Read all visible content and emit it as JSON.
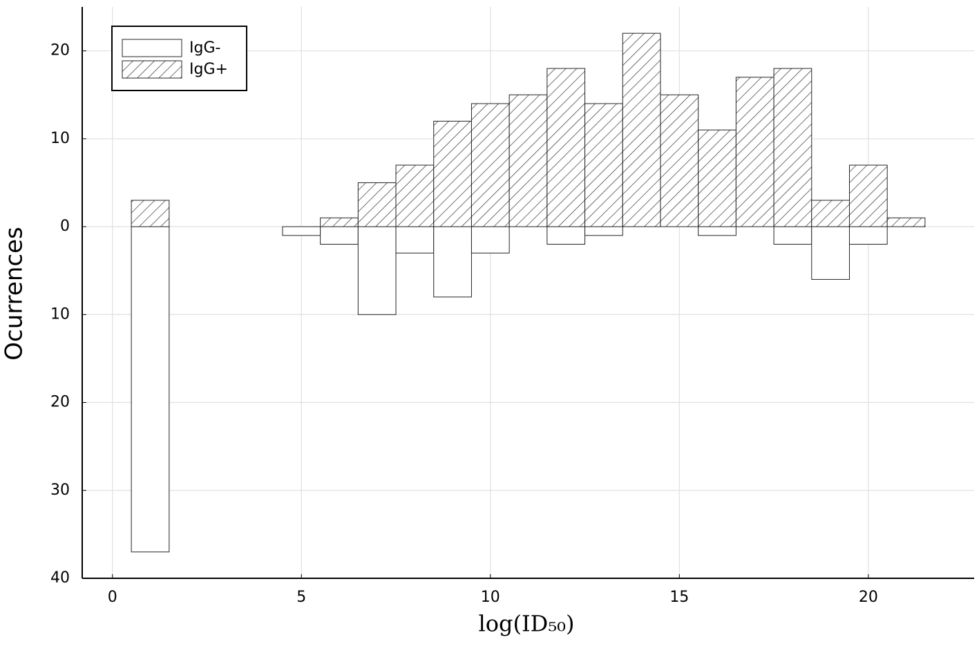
{
  "chart_data": {
    "type": "histogram",
    "xlabel": "log(ID₅₀)",
    "ylabel": "Ocurrences",
    "bins": [
      0.5,
      1.5,
      2.5,
      3.5,
      4.5,
      5.5,
      6.5,
      7.5,
      8.5,
      9.5,
      10.5,
      11.5,
      12.5,
      13.5,
      14.5,
      15.5,
      16.5,
      17.5,
      18.5,
      19.5,
      20.5,
      21.5
    ],
    "series": [
      {
        "name": "IgG-",
        "color": "#ffffff",
        "hatch": false,
        "values": [
          -37,
          0,
          0,
          0,
          -1,
          -2,
          -10,
          -3,
          -8,
          -3,
          0,
          -2,
          -1,
          0,
          0,
          -1,
          0,
          -2,
          -6,
          -2,
          0
        ]
      },
      {
        "name": "IgG+",
        "color": "#ffffff",
        "hatch": true,
        "values": [
          3,
          0,
          0,
          0,
          0,
          1,
          5,
          7,
          12,
          14,
          15,
          18,
          14,
          22,
          15,
          11,
          17,
          18,
          3,
          7,
          1
        ]
      }
    ],
    "xlim": [
      -0.8,
      22.8
    ],
    "ylim": [
      -40,
      25
    ],
    "xticks": [
      0,
      5,
      10,
      15,
      20
    ],
    "yticks": [
      20,
      10,
      0,
      {
        "value": -10,
        "label": "10"
      },
      {
        "value": -20,
        "label": "20"
      },
      {
        "value": -30,
        "label": "30"
      },
      {
        "value": -40,
        "label": "40"
      }
    ],
    "grid": true,
    "legend": "upper left"
  }
}
